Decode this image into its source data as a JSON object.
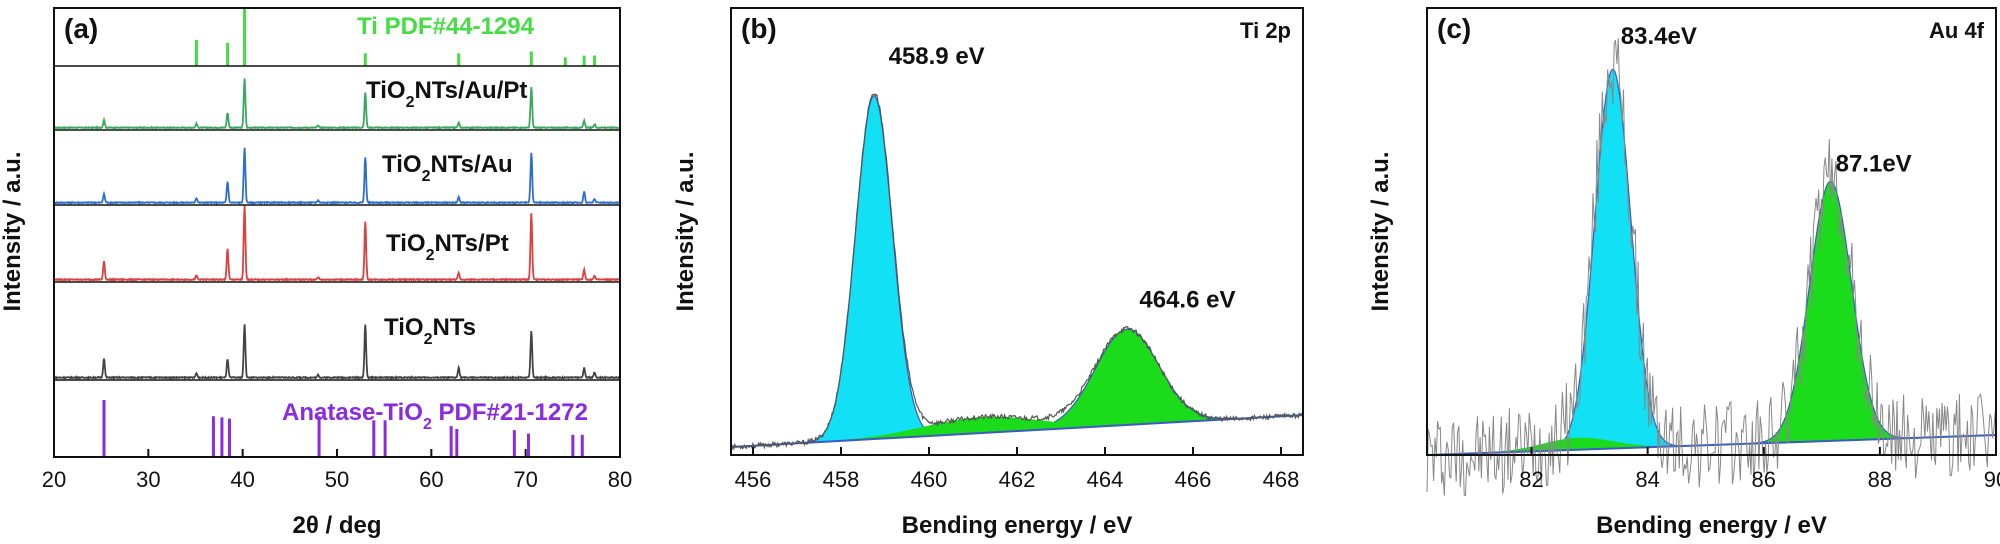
{
  "chart_data": [
    {
      "type": "line",
      "panel_label": "(a)",
      "xlabel": "2θ / deg",
      "ylabel": "Intensity / a.u.",
      "xlim": [
        20,
        80
      ],
      "xticks": [
        20,
        30,
        40,
        50,
        60,
        70,
        80
      ],
      "reference_top": {
        "name": "Ti PDF#44-1294",
        "color": "#44dd44",
        "peaks": [
          {
            "x": 35.1,
            "h": 0.45
          },
          {
            "x": 38.4,
            "h": 0.4
          },
          {
            "x": 40.2,
            "h": 1.0
          },
          {
            "x": 53.0,
            "h": 0.22
          },
          {
            "x": 62.9,
            "h": 0.22
          },
          {
            "x": 70.6,
            "h": 0.25
          },
          {
            "x": 74.2,
            "h": 0.15
          },
          {
            "x": 76.2,
            "h": 0.18
          },
          {
            "x": 77.3,
            "h": 0.18
          }
        ]
      },
      "reference_bottom": {
        "name_main": "Anatase-TiO",
        "name_sub": "2",
        "name_rest": " PDF#21-1272",
        "color": "#8a2be2",
        "peaks": [
          {
            "x": 25.3,
            "h": 1.0
          },
          {
            "x": 36.9,
            "h": 0.72
          },
          {
            "x": 37.8,
            "h": 0.7
          },
          {
            "x": 38.6,
            "h": 0.68
          },
          {
            "x": 48.1,
            "h": 0.72
          },
          {
            "x": 53.9,
            "h": 0.65
          },
          {
            "x": 55.1,
            "h": 0.65
          },
          {
            "x": 62.1,
            "h": 0.55
          },
          {
            "x": 62.7,
            "h": 0.5
          },
          {
            "x": 68.8,
            "h": 0.48
          },
          {
            "x": 70.3,
            "h": 0.42
          },
          {
            "x": 75.0,
            "h": 0.4
          },
          {
            "x": 76.0,
            "h": 0.4
          }
        ]
      },
      "series": [
        {
          "name_main": "TiO",
          "name_sub": "2",
          "name_rest": "NTs/Au/Pt",
          "color": "#3aa860",
          "peaks": [
            {
              "x": 25.3,
              "h": 0.11
            },
            {
              "x": 35.1,
              "h": 0.06
            },
            {
              "x": 38.4,
              "h": 0.21
            },
            {
              "x": 40.2,
              "h": 0.7
            },
            {
              "x": 48.0,
              "h": 0.03
            },
            {
              "x": 53.0,
              "h": 0.5
            },
            {
              "x": 62.9,
              "h": 0.07
            },
            {
              "x": 70.6,
              "h": 0.58
            },
            {
              "x": 76.2,
              "h": 0.1
            },
            {
              "x": 77.3,
              "h": 0.05
            }
          ]
        },
        {
          "name_main": "TiO",
          "name_sub": "2",
          "name_rest": "NTs/Au",
          "color": "#2f6fcc",
          "peaks": [
            {
              "x": 25.3,
              "h": 0.11
            },
            {
              "x": 35.1,
              "h": 0.06
            },
            {
              "x": 38.4,
              "h": 0.27
            },
            {
              "x": 40.2,
              "h": 0.7
            },
            {
              "x": 48.0,
              "h": 0.03
            },
            {
              "x": 53.0,
              "h": 0.58
            },
            {
              "x": 62.9,
              "h": 0.07
            },
            {
              "x": 70.6,
              "h": 0.64
            },
            {
              "x": 76.2,
              "h": 0.14
            },
            {
              "x": 77.3,
              "h": 0.05
            }
          ]
        },
        {
          "name_main": "TiO",
          "name_sub": "2",
          "name_rest": "NTs/Pt",
          "color": "#dd4040",
          "peaks": [
            {
              "x": 25.3,
              "h": 0.22
            },
            {
              "x": 35.1,
              "h": 0.05
            },
            {
              "x": 38.4,
              "h": 0.38
            },
            {
              "x": 40.2,
              "h": 0.9
            },
            {
              "x": 48.0,
              "h": 0.03
            },
            {
              "x": 53.0,
              "h": 0.7
            },
            {
              "x": 62.9,
              "h": 0.08
            },
            {
              "x": 70.6,
              "h": 0.81
            },
            {
              "x": 76.2,
              "h": 0.12
            },
            {
              "x": 77.3,
              "h": 0.05
            }
          ]
        },
        {
          "name_main": "TiO",
          "name_sub": "2",
          "name_rest": "NTs",
          "color": "#444444",
          "peaks": [
            {
              "x": 25.3,
              "h": 0.22
            },
            {
              "x": 35.1,
              "h": 0.05
            },
            {
              "x": 38.4,
              "h": 0.21
            },
            {
              "x": 40.2,
              "h": 0.6
            },
            {
              "x": 48.0,
              "h": 0.03
            },
            {
              "x": 53.0,
              "h": 0.6
            },
            {
              "x": 62.9,
              "h": 0.11
            },
            {
              "x": 70.6,
              "h": 0.53
            },
            {
              "x": 76.2,
              "h": 0.11
            },
            {
              "x": 77.3,
              "h": 0.06
            }
          ]
        }
      ]
    },
    {
      "type": "area",
      "panel_label": "(b)",
      "corner_label": "Ti 2p",
      "xlabel": "Bending energy / eV",
      "ylabel": "Intensity / a.u.",
      "xlim": [
        455.5,
        468.5
      ],
      "ylim": [
        0,
        1.12
      ],
      "xticks": [
        456,
        458,
        460,
        462,
        464,
        466,
        468
      ],
      "baseline": {
        "start": 0.02,
        "end": 0.1
      },
      "components": [
        {
          "center": 458.75,
          "amplitude": 0.86,
          "sigma": 0.42,
          "color": "#11e0f5"
        },
        {
          "center": 464.5,
          "amplitude": 0.24,
          "sigma": 0.72,
          "color": "#1bdc1b"
        }
      ],
      "background_bump": {
        "center": 461.2,
        "amplitude": 0.04,
        "sigma": 1.3
      },
      "annotations": [
        {
          "text": "458.9 eV",
          "x": 458.9,
          "y": 0.98
        },
        {
          "text": "464.6 eV",
          "x": 464.6,
          "y": 0.37
        }
      ]
    },
    {
      "type": "area",
      "panel_label": "(c)",
      "corner_label": "Au 4f",
      "xlabel": "Bending energy / eV",
      "ylabel": "Intensity / a.u.",
      "xlim": [
        80.2,
        90
      ],
      "ylim": [
        0,
        1.12
      ],
      "xticks": [
        82,
        84,
        86,
        88,
        90
      ],
      "baseline": {
        "start": 0.0,
        "end": 0.05
      },
      "components": [
        {
          "center": 83.4,
          "amplitude": 0.95,
          "sigma": 0.31,
          "color": "#11e0f5"
        },
        {
          "center": 87.15,
          "amplitude": 0.65,
          "sigma": 0.36,
          "color": "#1bdc1b"
        }
      ],
      "background_bump": {
        "center": 82.8,
        "amplitude": 0.03,
        "sigma": 0.6
      },
      "annotations": [
        {
          "text": "83.4eV",
          "x": 83.4,
          "y": 1.03
        },
        {
          "text": "87.1eV",
          "x": 87.1,
          "y": 0.71
        }
      ]
    }
  ]
}
